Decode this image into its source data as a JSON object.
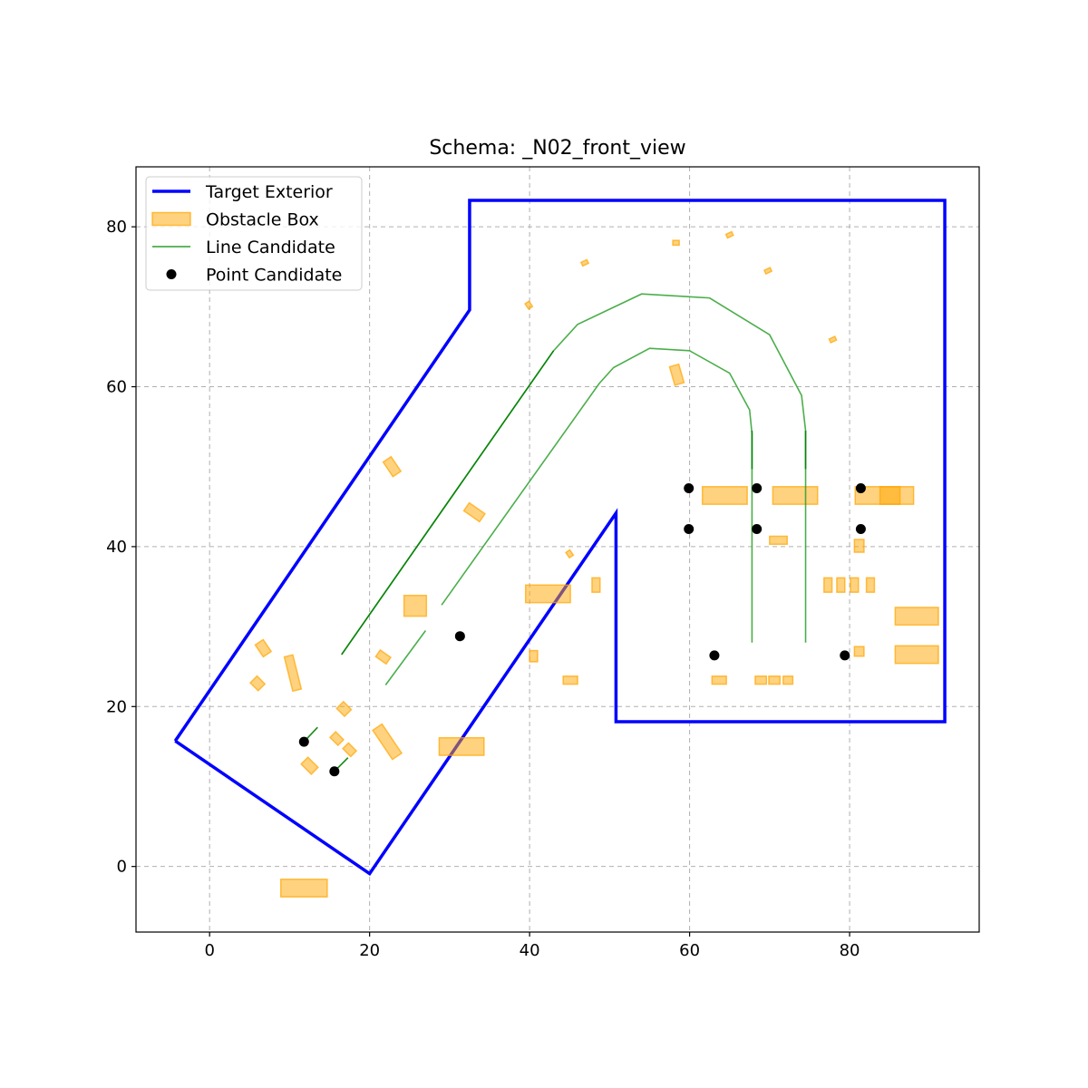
{
  "chart_data": {
    "type": "scatter",
    "title": "Schema: _N02_front_view",
    "xlabel": "",
    "ylabel": "",
    "xlim": [
      -9.2,
      96.2
    ],
    "ylim": [
      -8.2,
      87.5
    ],
    "xticks": [
      0,
      20,
      40,
      60,
      80
    ],
    "yticks": [
      0,
      20,
      40,
      60,
      80
    ],
    "grid": true,
    "legend": {
      "placement": "upper-left",
      "entries": [
        {
          "label": "Target Exterior",
          "kind": "line",
          "color": "#0000ff"
        },
        {
          "label": "Obstacle Box",
          "kind": "patch",
          "color": "#ffa500"
        },
        {
          "label": "Line Candidate",
          "kind": "line",
          "color": "#2ca02c"
        },
        {
          "label": "Point Candidate",
          "kind": "point",
          "color": "#000000"
        }
      ]
    },
    "colors": {
      "exterior": "#0000ff",
      "obstacle": "#ffa500",
      "line_light": "#2ca02c",
      "line_dark": "#008000",
      "point": "#000000",
      "grid": "#b0b0b0"
    },
    "exterior": [
      [
        -4.3,
        15.7
      ],
      [
        20.0,
        -0.9
      ],
      [
        50.8,
        44.2
      ],
      [
        50.8,
        18.1
      ],
      [
        91.9,
        18.1
      ],
      [
        91.9,
        83.3
      ],
      [
        32.5,
        83.3
      ],
      [
        32.5,
        69.6
      ],
      [
        -4.3,
        15.7
      ]
    ],
    "obstacles": [
      {
        "cx": 11.8,
        "cy": -2.7,
        "w": 5.8,
        "h": 2.2,
        "angle": 0
      },
      {
        "cx": 31.5,
        "cy": 15.0,
        "w": 5.6,
        "h": 2.2,
        "angle": 0
      },
      {
        "cx": 42.3,
        "cy": 34.1,
        "w": 5.6,
        "h": 2.2,
        "angle": 0
      },
      {
        "cx": 64.4,
        "cy": 46.4,
        "w": 5.6,
        "h": 2.2,
        "angle": 0
      },
      {
        "cx": 73.2,
        "cy": 46.4,
        "w": 5.6,
        "h": 2.2,
        "angle": 0
      },
      {
        "cx": 83.5,
        "cy": 46.4,
        "w": 5.6,
        "h": 2.2,
        "angle": 0
      },
      {
        "cx": 85.9,
        "cy": 46.4,
        "w": 4.2,
        "h": 2.2,
        "angle": 0
      },
      {
        "cx": 88.4,
        "cy": 31.3,
        "w": 5.4,
        "h": 2.2,
        "angle": 0
      },
      {
        "cx": 88.4,
        "cy": 26.5,
        "w": 5.4,
        "h": 2.2,
        "angle": 0
      },
      {
        "cx": 25.7,
        "cy": 32.6,
        "w": 2.8,
        "h": 2.6,
        "angle": 0
      },
      {
        "cx": 48.3,
        "cy": 35.2,
        "w": 1.0,
        "h": 1.8,
        "angle": 0
      },
      {
        "cx": 45.1,
        "cy": 23.3,
        "w": 1.8,
        "h": 1.0,
        "angle": 0
      },
      {
        "cx": 40.5,
        "cy": 26.3,
        "w": 1.0,
        "h": 1.4,
        "angle": 0
      },
      {
        "cx": 63.7,
        "cy": 23.3,
        "w": 1.8,
        "h": 1.0,
        "angle": 0
      },
      {
        "cx": 68.9,
        "cy": 23.3,
        "w": 1.4,
        "h": 1.0,
        "angle": 0
      },
      {
        "cx": 70.6,
        "cy": 23.3,
        "w": 1.4,
        "h": 1.0,
        "angle": 0
      },
      {
        "cx": 72.3,
        "cy": 23.3,
        "w": 1.2,
        "h": 1.0,
        "angle": 0
      },
      {
        "cx": 71.1,
        "cy": 40.8,
        "w": 2.2,
        "h": 1.0,
        "angle": 0
      },
      {
        "cx": 81.2,
        "cy": 40.1,
        "w": 1.2,
        "h": 1.6,
        "angle": 0
      },
      {
        "cx": 81.2,
        "cy": 26.9,
        "w": 1.2,
        "h": 1.2,
        "angle": 0
      },
      {
        "cx": 77.3,
        "cy": 35.2,
        "w": 1.0,
        "h": 1.8,
        "angle": 0
      },
      {
        "cx": 78.9,
        "cy": 35.2,
        "w": 1.0,
        "h": 1.8,
        "angle": 0
      },
      {
        "cx": 80.6,
        "cy": 35.2,
        "w": 1.0,
        "h": 1.8,
        "angle": 0
      },
      {
        "cx": 82.6,
        "cy": 35.2,
        "w": 1.0,
        "h": 1.8,
        "angle": 0
      },
      {
        "cx": 10.4,
        "cy": 24.2,
        "w": 1.1,
        "h": 4.4,
        "angle": -14
      },
      {
        "cx": 22.2,
        "cy": 15.6,
        "w": 1.4,
        "h": 4.4,
        "angle": -34
      },
      {
        "cx": 6.7,
        "cy": 27.3,
        "w": 1.2,
        "h": 1.8,
        "angle": -34
      },
      {
        "cx": 6.0,
        "cy": 22.9,
        "w": 1.2,
        "h": 1.4,
        "angle": -45
      },
      {
        "cx": 16.8,
        "cy": 19.7,
        "w": 1.2,
        "h": 1.4,
        "angle": -45
      },
      {
        "cx": 12.5,
        "cy": 12.6,
        "w": 1.2,
        "h": 1.8,
        "angle": -45
      },
      {
        "cx": 15.9,
        "cy": 16.0,
        "w": 1.0,
        "h": 1.4,
        "angle": -45
      },
      {
        "cx": 17.5,
        "cy": 14.6,
        "w": 1.0,
        "h": 1.4,
        "angle": -45
      },
      {
        "cx": 21.7,
        "cy": 26.2,
        "w": 1.0,
        "h": 1.6,
        "angle": -55
      },
      {
        "cx": 22.8,
        "cy": 50.0,
        "w": 1.2,
        "h": 2.2,
        "angle": -34
      },
      {
        "cx": 33.1,
        "cy": 44.3,
        "w": 1.2,
        "h": 2.4,
        "angle": -55
      },
      {
        "cx": 58.4,
        "cy": 61.5,
        "w": 1.2,
        "h": 2.4,
        "angle": -16
      },
      {
        "cx": 45.0,
        "cy": 39.1,
        "w": 0.6,
        "h": 0.8,
        "angle": -34
      },
      {
        "cx": 39.9,
        "cy": 70.2,
        "w": 0.6,
        "h": 0.8,
        "angle": -34
      },
      {
        "cx": 46.9,
        "cy": 75.5,
        "w": 0.8,
        "h": 0.5,
        "angle": -25
      },
      {
        "cx": 58.3,
        "cy": 78.0,
        "w": 0.8,
        "h": 0.6,
        "angle": 0
      },
      {
        "cx": 65.0,
        "cy": 79.0,
        "w": 0.8,
        "h": 0.5,
        "angle": -25
      },
      {
        "cx": 69.8,
        "cy": 74.5,
        "w": 0.8,
        "h": 0.5,
        "angle": -25
      },
      {
        "cx": 77.9,
        "cy": 65.9,
        "w": 0.8,
        "h": 0.5,
        "angle": -25
      }
    ],
    "lines": [
      {
        "shade": "light",
        "points": [
          [
            16.5,
            26.5
          ],
          [
            43.0,
            64.5
          ],
          [
            46.0,
            67.8
          ],
          [
            54.0,
            71.6
          ],
          [
            62.5,
            71.1
          ],
          [
            70.0,
            66.5
          ],
          [
            74.0,
            58.9
          ],
          [
            74.5,
            54.5
          ],
          [
            74.5,
            28.0
          ]
        ]
      },
      {
        "shade": "light",
        "points": [
          [
            29.0,
            32.7
          ],
          [
            48.7,
            60.4
          ],
          [
            50.5,
            62.4
          ],
          [
            55.0,
            64.8
          ],
          [
            60.0,
            64.5
          ],
          [
            65.0,
            61.7
          ],
          [
            67.5,
            57.1
          ],
          [
            67.8,
            54.1
          ],
          [
            67.8,
            28.0
          ]
        ]
      },
      {
        "shade": "light",
        "points": [
          [
            22.0,
            22.7
          ],
          [
            27.0,
            29.5
          ]
        ]
      },
      {
        "shade": "dark",
        "points": [
          [
            16.5,
            26.5
          ],
          [
            43.0,
            64.5
          ]
        ]
      },
      {
        "shade": "dark",
        "points": [
          [
            67.8,
            54.5
          ],
          [
            67.8,
            49.7
          ]
        ]
      },
      {
        "shade": "dark",
        "points": [
          [
            74.5,
            54.5
          ],
          [
            74.5,
            49.7
          ]
        ]
      },
      {
        "shade": "dark",
        "points": [
          [
            11.8,
            15.6
          ],
          [
            13.5,
            17.4
          ]
        ]
      },
      {
        "shade": "dark",
        "points": [
          [
            15.6,
            11.9
          ],
          [
            17.3,
            13.6
          ]
        ]
      }
    ],
    "points": [
      [
        11.8,
        15.6
      ],
      [
        15.6,
        11.9
      ],
      [
        31.3,
        28.8
      ],
      [
        59.9,
        47.3
      ],
      [
        59.9,
        42.2
      ],
      [
        68.4,
        47.3
      ],
      [
        68.4,
        42.2
      ],
      [
        81.4,
        47.3
      ],
      [
        81.4,
        42.2
      ],
      [
        63.1,
        26.4
      ],
      [
        79.4,
        26.4
      ]
    ]
  }
}
